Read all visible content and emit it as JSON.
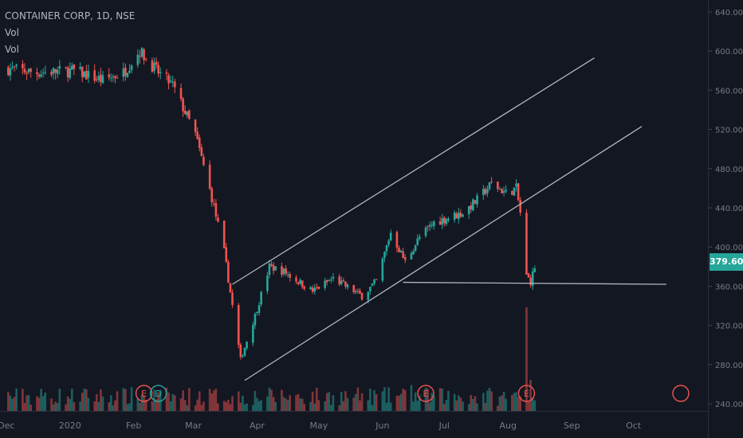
{
  "legend": {
    "symbol_line": "CONTAINER CORP, 1D, NSE",
    "volume_labels": [
      "Vol",
      "Vol"
    ]
  },
  "last_price_label": "379.60",
  "colors": {
    "background": "#131722",
    "up": "#26a69a",
    "down": "#ef5350",
    "trendline": "#b2b5be",
    "axis_text": "#787b86"
  },
  "chart_data": {
    "type": "candlestick",
    "symbol": "CONTAINER CORP",
    "interval": "1D",
    "exchange": "NSE",
    "y_axis_ticks": [
      "640.00",
      "600.00",
      "560.00",
      "520.00",
      "480.00",
      "440.00",
      "400.00",
      "360.00",
      "320.00",
      "280.00",
      "240.00"
    ],
    "ylim": [
      232,
      648
    ],
    "x_axis_labels": [
      "Dec",
      "2020",
      "Feb",
      "Mar",
      "Apr",
      "May",
      "Jun",
      "Jul",
      "Aug",
      "Sep",
      "Oct"
    ],
    "last_price": 379.6,
    "price_path_anchors": [
      {
        "date": "2019-12-02",
        "price": 582
      },
      {
        "date": "2019-12-16",
        "price": 578
      },
      {
        "date": "2020-01-03",
        "price": 580
      },
      {
        "date": "2020-01-17",
        "price": 570
      },
      {
        "date": "2020-01-27",
        "price": 578
      },
      {
        "date": "2020-02-04",
        "price": 600
      },
      {
        "date": "2020-02-12",
        "price": 580
      },
      {
        "date": "2020-02-20",
        "price": 565
      },
      {
        "date": "2020-03-02",
        "price": 515
      },
      {
        "date": "2020-03-10",
        "price": 450
      },
      {
        "date": "2020-03-16",
        "price": 395
      },
      {
        "date": "2020-03-20",
        "price": 340
      },
      {
        "date": "2020-03-24",
        "price": 285
      },
      {
        "date": "2020-03-31",
        "price": 330
      },
      {
        "date": "2020-04-07",
        "price": 380
      },
      {
        "date": "2020-04-14",
        "price": 375
      },
      {
        "date": "2020-04-28",
        "price": 355
      },
      {
        "date": "2020-05-08",
        "price": 368
      },
      {
        "date": "2020-05-22",
        "price": 350
      },
      {
        "date": "2020-05-29",
        "price": 365
      },
      {
        "date": "2020-06-05",
        "price": 415
      },
      {
        "date": "2020-06-12",
        "price": 385
      },
      {
        "date": "2020-06-19",
        "price": 410
      },
      {
        "date": "2020-06-26",
        "price": 425
      },
      {
        "date": "2020-07-03",
        "price": 430
      },
      {
        "date": "2020-07-10",
        "price": 435
      },
      {
        "date": "2020-07-17",
        "price": 448
      },
      {
        "date": "2020-07-24",
        "price": 465
      },
      {
        "date": "2020-07-31",
        "price": 455
      },
      {
        "date": "2020-08-05",
        "price": 460
      },
      {
        "date": "2020-08-07",
        "price": 435
      },
      {
        "date": "2020-08-10",
        "price": 370
      },
      {
        "date": "2020-08-12",
        "price": 365
      },
      {
        "date": "2020-08-14",
        "price": 379.6
      }
    ],
    "trend_lines": [
      {
        "name": "channel-upper",
        "from": {
          "date": "2020-03-20",
          "price": 362
        },
        "to": {
          "date": "2020-09-12",
          "price": 593
        }
      },
      {
        "name": "channel-lower",
        "from": {
          "date": "2020-03-26",
          "price": 264
        },
        "to": {
          "date": "2020-10-05",
          "price": 523
        }
      },
      {
        "name": "support",
        "from": {
          "date": "2020-06-11",
          "price": 364
        },
        "to": {
          "date": "2020-10-17",
          "price": 362
        }
      }
    ],
    "volume_spikes": [
      {
        "date": "2020-06-15",
        "level": 0.25
      },
      {
        "date": "2020-07-29",
        "level": 0.15
      },
      {
        "date": "2020-08-10",
        "level": 1.0
      },
      {
        "date": "2020-08-12",
        "level": 0.3
      }
    ],
    "event_markers": [
      {
        "label": "E",
        "date": "2020-02-06",
        "color": "#ef5350"
      },
      {
        "label": "D",
        "date": "2020-02-13",
        "color": "#26a69a"
      },
      {
        "label": "E",
        "date": "2020-06-22",
        "color": "#ef5350"
      },
      {
        "label": "E",
        "date": "2020-08-10",
        "color": "#ef5350"
      },
      {
        "label": "",
        "date": "2020-10-24",
        "color": "#ef5350"
      }
    ]
  }
}
